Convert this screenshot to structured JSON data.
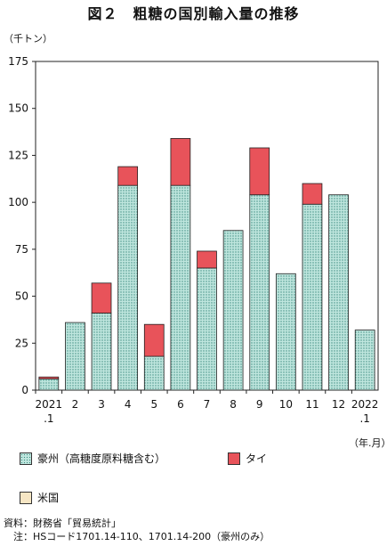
{
  "header": {
    "title": "図２　粗糖の国別輸入量の推移",
    "unit_label": "（千トン）",
    "x_unit_label": "（年.月）"
  },
  "chart_data": {
    "type": "bar",
    "stacked": true,
    "title": "図２　粗糖の国別輸入量の推移",
    "ylabel": "（千トン）",
    "xlabel": "（年.月）",
    "ylim": [
      0,
      175
    ],
    "yticks": [
      0,
      25,
      50,
      75,
      100,
      125,
      150,
      175
    ],
    "categories": [
      [
        "2021",
        ".1"
      ],
      [
        "2"
      ],
      [
        "3"
      ],
      [
        "4"
      ],
      [
        "5"
      ],
      [
        "6"
      ],
      [
        "7"
      ],
      [
        "8"
      ],
      [
        "9"
      ],
      [
        "10"
      ],
      [
        "11"
      ],
      [
        "12"
      ],
      [
        "2022",
        ".1"
      ]
    ],
    "series": [
      {
        "name": "豪州（高糖度原料糖含む）",
        "color": "#a8d8cf",
        "pattern": "dotted",
        "values": [
          6,
          36,
          41,
          109,
          18,
          109,
          65,
          85,
          104,
          62,
          99,
          104,
          32
        ]
      },
      {
        "name": "タイ",
        "color": "#e8535a",
        "values": [
          1,
          0,
          16,
          10,
          17,
          25,
          9,
          0,
          25,
          0,
          11,
          0,
          0
        ]
      },
      {
        "name": "米国",
        "color": "#f6e6c4",
        "values": [
          0,
          0,
          0,
          0,
          0,
          0,
          0,
          0,
          0,
          0,
          0,
          0,
          0
        ]
      }
    ],
    "grid": false,
    "legend_position": "bottom"
  },
  "legend": {
    "items": [
      {
        "label": "豪州（高糖度原料糖含む）",
        "icon": "dotted-teal-swatch"
      },
      {
        "label": "タイ",
        "icon": "red-swatch"
      },
      {
        "label": "米国",
        "icon": "beige-swatch"
      }
    ]
  },
  "footnotes": {
    "source": "資料：財務省「貿易統計」",
    "note": "　注：HSコード1701.14-110、1701.14-200（豪州のみ）"
  }
}
